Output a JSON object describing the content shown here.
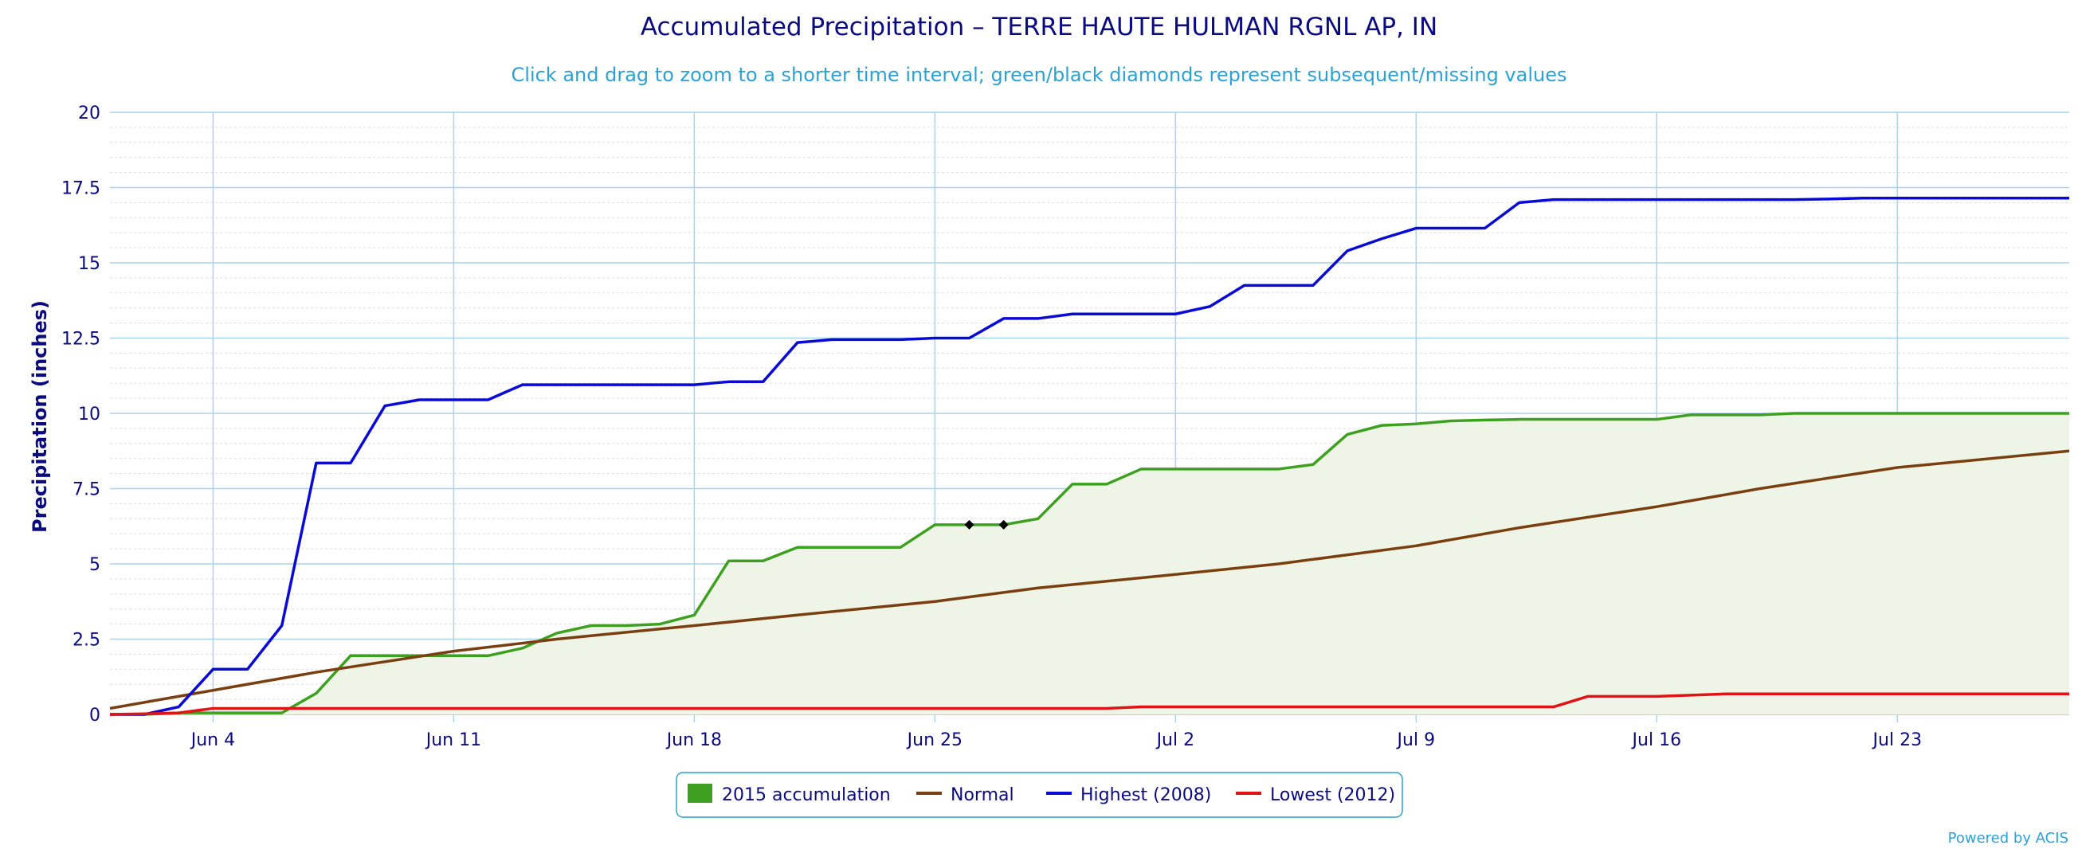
{
  "chart_data": {
    "type": "line",
    "title": "Accumulated Precipitation – TERRE HAUTE HULMAN RGNL AP, IN",
    "subtitle": "Click and drag to zoom to a shorter time interval; green/black diamonds represent subsequent/missing values",
    "ylabel": "Precipitation (inches)",
    "xlabel": "",
    "ylim": [
      0,
      20
    ],
    "xlim": [
      "2015-06-01",
      "2015-07-28"
    ],
    "y_ticks": [
      "0",
      "2.5",
      "5",
      "7.5",
      "10",
      "12.5",
      "15",
      "17.5",
      "20"
    ],
    "y_tick_values": [
      0,
      2.5,
      5,
      7.5,
      10,
      12.5,
      15,
      17.5,
      20
    ],
    "x_ticks": [
      {
        "date": "2015-06-04",
        "label": "Jun 4"
      },
      {
        "date": "2015-06-11",
        "label": "Jun 11"
      },
      {
        "date": "2015-06-18",
        "label": "Jun 18"
      },
      {
        "date": "2015-06-25",
        "label": "Jun 25"
      },
      {
        "date": "2015-07-02",
        "label": "Jul 2"
      },
      {
        "date": "2015-07-09",
        "label": "Jul 9"
      },
      {
        "date": "2015-07-16",
        "label": "Jul 16"
      },
      {
        "date": "2015-07-23",
        "label": "Jul 23"
      }
    ],
    "grid": true,
    "legend_position": "bottom-center",
    "series": [
      {
        "name": "2015 accumulation",
        "color": "#3ea020",
        "fill": "#eef5e6",
        "style": "area",
        "points": [
          [
            "2015-06-01",
            0
          ],
          [
            "2015-06-02",
            0
          ],
          [
            "2015-06-03",
            0.05
          ],
          [
            "2015-06-04",
            0.05
          ],
          [
            "2015-06-05",
            0.05
          ],
          [
            "2015-06-06",
            0.05
          ],
          [
            "2015-06-07",
            0.7
          ],
          [
            "2015-06-08",
            1.95
          ],
          [
            "2015-06-09",
            1.95
          ],
          [
            "2015-06-10",
            1.95
          ],
          [
            "2015-06-11",
            1.95
          ],
          [
            "2015-06-12",
            1.95
          ],
          [
            "2015-06-13",
            2.2
          ],
          [
            "2015-06-14",
            2.7
          ],
          [
            "2015-06-15",
            2.95
          ],
          [
            "2015-06-16",
            2.95
          ],
          [
            "2015-06-17",
            3.0
          ],
          [
            "2015-06-18",
            3.3
          ],
          [
            "2015-06-19",
            5.1
          ],
          [
            "2015-06-20",
            5.1
          ],
          [
            "2015-06-21",
            5.55
          ],
          [
            "2015-06-22",
            5.55
          ],
          [
            "2015-06-23",
            5.55
          ],
          [
            "2015-06-24",
            5.55
          ],
          [
            "2015-06-25",
            6.3
          ],
          [
            "2015-06-26",
            6.3
          ],
          [
            "2015-06-27",
            6.3
          ],
          [
            "2015-06-28",
            6.5
          ],
          [
            "2015-06-29",
            7.65
          ],
          [
            "2015-06-30",
            7.65
          ],
          [
            "2015-07-01",
            8.15
          ],
          [
            "2015-07-02",
            8.15
          ],
          [
            "2015-07-03",
            8.15
          ],
          [
            "2015-07-04",
            8.15
          ],
          [
            "2015-07-05",
            8.15
          ],
          [
            "2015-07-06",
            8.3
          ],
          [
            "2015-07-07",
            9.3
          ],
          [
            "2015-07-08",
            9.6
          ],
          [
            "2015-07-09",
            9.65
          ],
          [
            "2015-07-10",
            9.75
          ],
          [
            "2015-07-11",
            9.78
          ],
          [
            "2015-07-12",
            9.8
          ],
          [
            "2015-07-13",
            9.8
          ],
          [
            "2015-07-14",
            9.8
          ],
          [
            "2015-07-15",
            9.8
          ],
          [
            "2015-07-16",
            9.8
          ],
          [
            "2015-07-17",
            9.95
          ],
          [
            "2015-07-18",
            9.95
          ],
          [
            "2015-07-19",
            9.95
          ],
          [
            "2015-07-20",
            10.0
          ],
          [
            "2015-07-21",
            10.0
          ],
          [
            "2015-07-22",
            10.0
          ],
          [
            "2015-07-23",
            10.0
          ],
          [
            "2015-07-24",
            10.0
          ],
          [
            "2015-07-25",
            10.0
          ],
          [
            "2015-07-26",
            10.0
          ],
          [
            "2015-07-27",
            10.0
          ],
          [
            "2015-07-28",
            10.0
          ]
        ]
      },
      {
        "name": "Normal",
        "color": "#7a3f10",
        "style": "line",
        "points": [
          [
            "2015-06-01",
            0.2
          ],
          [
            "2015-06-04",
            0.8
          ],
          [
            "2015-06-07",
            1.4
          ],
          [
            "2015-06-11",
            2.1
          ],
          [
            "2015-06-14",
            2.5
          ],
          [
            "2015-06-18",
            2.95
          ],
          [
            "2015-06-21",
            3.3
          ],
          [
            "2015-06-25",
            3.75
          ],
          [
            "2015-06-28",
            4.2
          ],
          [
            "2015-07-02",
            4.65
          ],
          [
            "2015-07-05",
            5.0
          ],
          [
            "2015-07-09",
            5.6
          ],
          [
            "2015-07-12",
            6.2
          ],
          [
            "2015-07-16",
            6.9
          ],
          [
            "2015-07-19",
            7.5
          ],
          [
            "2015-07-23",
            8.2
          ],
          [
            "2015-07-28",
            8.75
          ]
        ]
      },
      {
        "name": "Highest (2008)",
        "color": "#0a0ad6",
        "style": "line",
        "points": [
          [
            "2015-06-01",
            0
          ],
          [
            "2015-06-02",
            0
          ],
          [
            "2015-06-03",
            0.25
          ],
          [
            "2015-06-04",
            1.5
          ],
          [
            "2015-06-05",
            1.5
          ],
          [
            "2015-06-06",
            2.95
          ],
          [
            "2015-06-07",
            8.35
          ],
          [
            "2015-06-08",
            8.35
          ],
          [
            "2015-06-09",
            10.25
          ],
          [
            "2015-06-10",
            10.45
          ],
          [
            "2015-06-11",
            10.45
          ],
          [
            "2015-06-12",
            10.45
          ],
          [
            "2015-06-13",
            10.95
          ],
          [
            "2015-06-14",
            10.95
          ],
          [
            "2015-06-15",
            10.95
          ],
          [
            "2015-06-16",
            10.95
          ],
          [
            "2015-06-17",
            10.95
          ],
          [
            "2015-06-18",
            10.95
          ],
          [
            "2015-06-19",
            11.05
          ],
          [
            "2015-06-20",
            11.05
          ],
          [
            "2015-06-21",
            12.35
          ],
          [
            "2015-06-22",
            12.45
          ],
          [
            "2015-06-23",
            12.45
          ],
          [
            "2015-06-24",
            12.45
          ],
          [
            "2015-06-25",
            12.5
          ],
          [
            "2015-06-26",
            12.5
          ],
          [
            "2015-06-27",
            13.15
          ],
          [
            "2015-06-28",
            13.15
          ],
          [
            "2015-06-29",
            13.3
          ],
          [
            "2015-06-30",
            13.3
          ],
          [
            "2015-07-01",
            13.3
          ],
          [
            "2015-07-02",
            13.3
          ],
          [
            "2015-07-03",
            13.55
          ],
          [
            "2015-07-04",
            14.25
          ],
          [
            "2015-07-05",
            14.25
          ],
          [
            "2015-07-06",
            14.25
          ],
          [
            "2015-07-07",
            15.4
          ],
          [
            "2015-07-08",
            15.8
          ],
          [
            "2015-07-09",
            16.15
          ],
          [
            "2015-07-10",
            16.15
          ],
          [
            "2015-07-11",
            16.15
          ],
          [
            "2015-07-12",
            17.0
          ],
          [
            "2015-07-13",
            17.1
          ],
          [
            "2015-07-14",
            17.1
          ],
          [
            "2015-07-15",
            17.1
          ],
          [
            "2015-07-16",
            17.1
          ],
          [
            "2015-07-17",
            17.1
          ],
          [
            "2015-07-18",
            17.1
          ],
          [
            "2015-07-19",
            17.1
          ],
          [
            "2015-07-20",
            17.1
          ],
          [
            "2015-07-21",
            17.12
          ],
          [
            "2015-07-22",
            17.15
          ],
          [
            "2015-07-23",
            17.15
          ],
          [
            "2015-07-24",
            17.15
          ],
          [
            "2015-07-25",
            17.15
          ],
          [
            "2015-07-26",
            17.15
          ],
          [
            "2015-07-27",
            17.15
          ],
          [
            "2015-07-28",
            17.15
          ]
        ]
      },
      {
        "name": "Lowest (2012)",
        "color": "#e01414",
        "style": "line",
        "points": [
          [
            "2015-06-01",
            0
          ],
          [
            "2015-06-02",
            0.02
          ],
          [
            "2015-06-03",
            0.05
          ],
          [
            "2015-06-04",
            0.2
          ],
          [
            "2015-06-05",
            0.2
          ],
          [
            "2015-06-16",
            0.2
          ],
          [
            "2015-06-30",
            0.2
          ],
          [
            "2015-07-01",
            0.25
          ],
          [
            "2015-07-13",
            0.25
          ],
          [
            "2015-07-14",
            0.6
          ],
          [
            "2015-07-16",
            0.6
          ],
          [
            "2015-07-18",
            0.68
          ],
          [
            "2015-07-28",
            0.68
          ]
        ]
      }
    ],
    "markers": [
      {
        "date": "2015-06-26",
        "value": 6.3,
        "shape": "diamond",
        "color": "#000000"
      },
      {
        "date": "2015-06-27",
        "value": 6.3,
        "shape": "diamond",
        "color": "#000000"
      }
    ]
  },
  "legend": {
    "items": [
      {
        "label": "2015 accumulation",
        "color": "#3ea020",
        "symbol": "square"
      },
      {
        "label": "Normal",
        "color": "#7a3f10",
        "symbol": "line"
      },
      {
        "label": "Highest (2008)",
        "color": "#0a0ad6",
        "symbol": "line"
      },
      {
        "label": "Lowest (2012)",
        "color": "#e01414",
        "symbol": "line"
      }
    ]
  },
  "credits": "Powered by ACIS",
  "colors": {
    "title": "#0b0b80",
    "subtitle": "#2ba1d6",
    "axis_text": "#0b0b80",
    "grid_major": "#a8d3ea",
    "grid_minor": "#dddddd",
    "legend_border": "#2ba1d6"
  }
}
